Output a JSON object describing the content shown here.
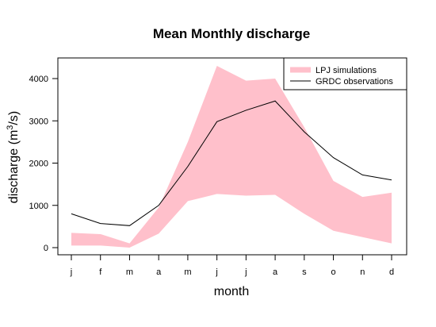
{
  "chart_data": {
    "type": "area",
    "title": "Mean Monthly discharge",
    "xlabel": "month",
    "ylabel_text": "discharge (m",
    "ylabel_sup": "3",
    "ylabel_tail": "/s)",
    "categories": [
      "j",
      "f",
      "m",
      "a",
      "m",
      "j",
      "j",
      "a",
      "s",
      "o",
      "n",
      "d"
    ],
    "ylim": [
      -100,
      4500
    ],
    "yticks": [
      0,
      1000,
      2000,
      3000,
      4000
    ],
    "legend_position": "top-right",
    "series": [
      {
        "name": "LPJ simulations",
        "kind": "band",
        "color": "#FFC0CB",
        "upper": [
          350,
          320,
          100,
          950,
          2500,
          4300,
          3950,
          4000,
          2850,
          1580,
          1200,
          1300
        ],
        "lower": [
          50,
          50,
          0,
          330,
          1100,
          1270,
          1230,
          1250,
          800,
          400,
          250,
          100
        ]
      },
      {
        "name": "GRDC observations",
        "kind": "line",
        "color": "#000000",
        "values": [
          800,
          570,
          520,
          1000,
          1920,
          2980,
          3250,
          3470,
          2740,
          2130,
          1720,
          1600
        ]
      }
    ]
  }
}
